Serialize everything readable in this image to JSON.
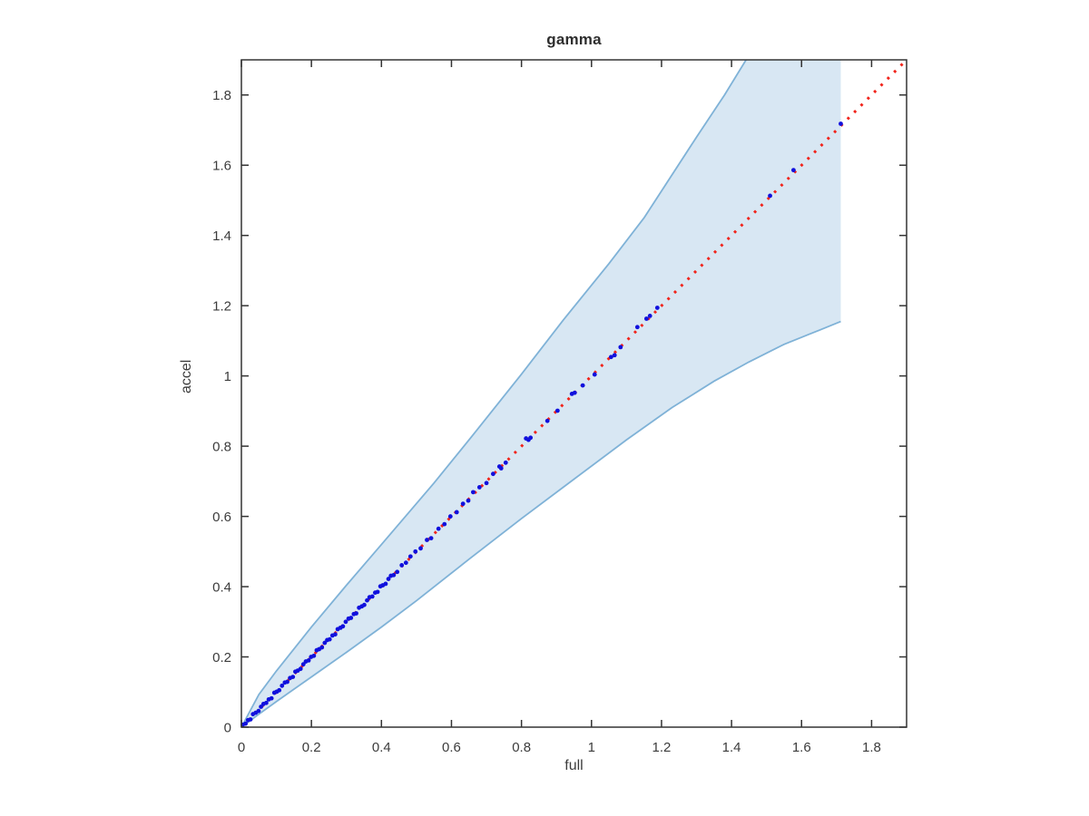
{
  "figure": {
    "title": "gamma",
    "xlabel": "full",
    "ylabel": "accel"
  },
  "chart_data": {
    "type": "scatter",
    "title": "gamma",
    "xlabel": "full",
    "ylabel": "accel",
    "xlim": [
      0,
      1.9
    ],
    "ylim": [
      0,
      1.9
    ],
    "grid": false,
    "box": true,
    "tick_direction": "in",
    "xticks": [
      0,
      0.2,
      0.4,
      0.6,
      0.8,
      1.0,
      1.2,
      1.4,
      1.6,
      1.8
    ],
    "xtick_labels": [
      "0",
      "0.2",
      "0.4",
      "0.6",
      "0.8",
      "1",
      "1.2",
      "1.4",
      "1.6",
      "1.8"
    ],
    "yticks": [
      0,
      0.2,
      0.4,
      0.6,
      0.8,
      1.0,
      1.2,
      1.4,
      1.6,
      1.8
    ],
    "ytick_labels": [
      "0",
      "0.2",
      "0.4",
      "0.6",
      "0.8",
      "1",
      "1.2",
      "1.4",
      "1.6",
      "1.8"
    ],
    "axis_color": "#333333",
    "identity_line": {
      "style": "dotted",
      "color": "#f1241b",
      "from": [
        0,
        0
      ],
      "to": [
        1.9,
        1.9
      ]
    },
    "band": {
      "description": "confidence funnel around identity line, truncated at x_end",
      "fill": "#d8e7f3",
      "edge_color": "#7fb2d7",
      "x_end": 1.712,
      "upper": [
        [
          0,
          0
        ],
        [
          0.05,
          0.093
        ],
        [
          0.1,
          0.16
        ],
        [
          0.2,
          0.285
        ],
        [
          0.3,
          0.404
        ],
        [
          0.4,
          0.52
        ],
        [
          0.55,
          0.695
        ],
        [
          0.66,
          0.83
        ],
        [
          0.8,
          1.005
        ],
        [
          0.92,
          1.16
        ],
        [
          1.05,
          1.32
        ],
        [
          1.15,
          1.45
        ],
        [
          1.3,
          1.68
        ],
        [
          1.38,
          1.8
        ],
        [
          1.46,
          1.93
        ]
      ],
      "lower": [
        [
          0,
          0
        ],
        [
          0.05,
          0.037
        ],
        [
          0.1,
          0.073
        ],
        [
          0.2,
          0.143
        ],
        [
          0.3,
          0.213
        ],
        [
          0.4,
          0.285
        ],
        [
          0.5,
          0.36
        ],
        [
          0.65,
          0.478
        ],
        [
          0.8,
          0.594
        ],
        [
          0.95,
          0.706
        ],
        [
          1.1,
          0.818
        ],
        [
          1.23,
          0.91
        ],
        [
          1.35,
          0.985
        ],
        [
          1.45,
          1.04
        ],
        [
          1.55,
          1.09
        ],
        [
          1.65,
          1.13
        ],
        [
          1.712,
          1.155
        ]
      ]
    },
    "points": {
      "color": "#1111dd",
      "marker": "dot",
      "data": [
        [
          0.004,
          0.007
        ],
        [
          0.012,
          0.01
        ],
        [
          0.019,
          0.02
        ],
        [
          0.026,
          0.022
        ],
        [
          0.033,
          0.037
        ],
        [
          0.041,
          0.041
        ],
        [
          0.049,
          0.046
        ],
        [
          0.056,
          0.058
        ],
        [
          0.063,
          0.066
        ],
        [
          0.071,
          0.069
        ],
        [
          0.078,
          0.079
        ],
        [
          0.086,
          0.082
        ],
        [
          0.094,
          0.098
        ],
        [
          0.101,
          0.101
        ],
        [
          0.108,
          0.105
        ],
        [
          0.116,
          0.118
        ],
        [
          0.124,
          0.127
        ],
        [
          0.131,
          0.129
        ],
        [
          0.139,
          0.14
        ],
        [
          0.147,
          0.143
        ],
        [
          0.154,
          0.158
        ],
        [
          0.161,
          0.161
        ],
        [
          0.169,
          0.166
        ],
        [
          0.177,
          0.179
        ],
        [
          0.184,
          0.187
        ],
        [
          0.192,
          0.19
        ],
        [
          0.199,
          0.2
        ],
        [
          0.207,
          0.203
        ],
        [
          0.215,
          0.219
        ],
        [
          0.222,
          0.222
        ],
        [
          0.23,
          0.227
        ],
        [
          0.238,
          0.24
        ],
        [
          0.245,
          0.248
        ],
        [
          0.252,
          0.25
        ],
        [
          0.26,
          0.261
        ],
        [
          0.268,
          0.264
        ],
        [
          0.275,
          0.279
        ],
        [
          0.283,
          0.283
        ],
        [
          0.29,
          0.287
        ],
        [
          0.298,
          0.3
        ],
        [
          0.306,
          0.309
        ],
        [
          0.313,
          0.311
        ],
        [
          0.321,
          0.322
        ],
        [
          0.328,
          0.324
        ],
        [
          0.336,
          0.34
        ],
        [
          0.344,
          0.344
        ],
        [
          0.351,
          0.348
        ],
        [
          0.359,
          0.361
        ],
        [
          0.366,
          0.37
        ],
        [
          0.374,
          0.372
        ],
        [
          0.382,
          0.383
        ],
        [
          0.389,
          0.385
        ],
        [
          0.397,
          0.401
        ],
        [
          0.404,
          0.404
        ],
        [
          0.412,
          0.408
        ],
        [
          0.42,
          0.422
        ],
        [
          0.427,
          0.431
        ],
        [
          0.435,
          0.433
        ],
        [
          0.445,
          0.442
        ],
        [
          0.458,
          0.461
        ],
        [
          0.47,
          0.468
        ],
        [
          0.483,
          0.486
        ],
        [
          0.497,
          0.5
        ],
        [
          0.512,
          0.509
        ],
        [
          0.53,
          0.533
        ],
        [
          0.542,
          0.538
        ],
        [
          0.563,
          0.565
        ],
        [
          0.58,
          0.578
        ],
        [
          0.597,
          0.6
        ],
        [
          0.615,
          0.612
        ],
        [
          0.633,
          0.636
        ],
        [
          0.648,
          0.645
        ],
        [
          0.662,
          0.669
        ],
        [
          0.68,
          0.683
        ],
        [
          0.7,
          0.695
        ],
        [
          0.719,
          0.721
        ],
        [
          0.737,
          0.742
        ],
        [
          0.742,
          0.737
        ],
        [
          0.755,
          0.753
        ],
        [
          0.813,
          0.822
        ],
        [
          0.82,
          0.818
        ],
        [
          0.826,
          0.824
        ],
        [
          0.874,
          0.872
        ],
        [
          0.903,
          0.901
        ],
        [
          0.944,
          0.949
        ],
        [
          0.952,
          0.952
        ],
        [
          0.975,
          0.973
        ],
        [
          1.009,
          1.004
        ],
        [
          1.056,
          1.054
        ],
        [
          1.066,
          1.059
        ],
        [
          1.083,
          1.082
        ],
        [
          1.131,
          1.139
        ],
        [
          1.157,
          1.163
        ],
        [
          1.167,
          1.171
        ],
        [
          1.188,
          1.194
        ],
        [
          1.51,
          1.513
        ],
        [
          1.577,
          1.586
        ],
        [
          1.712,
          1.718
        ]
      ]
    }
  }
}
